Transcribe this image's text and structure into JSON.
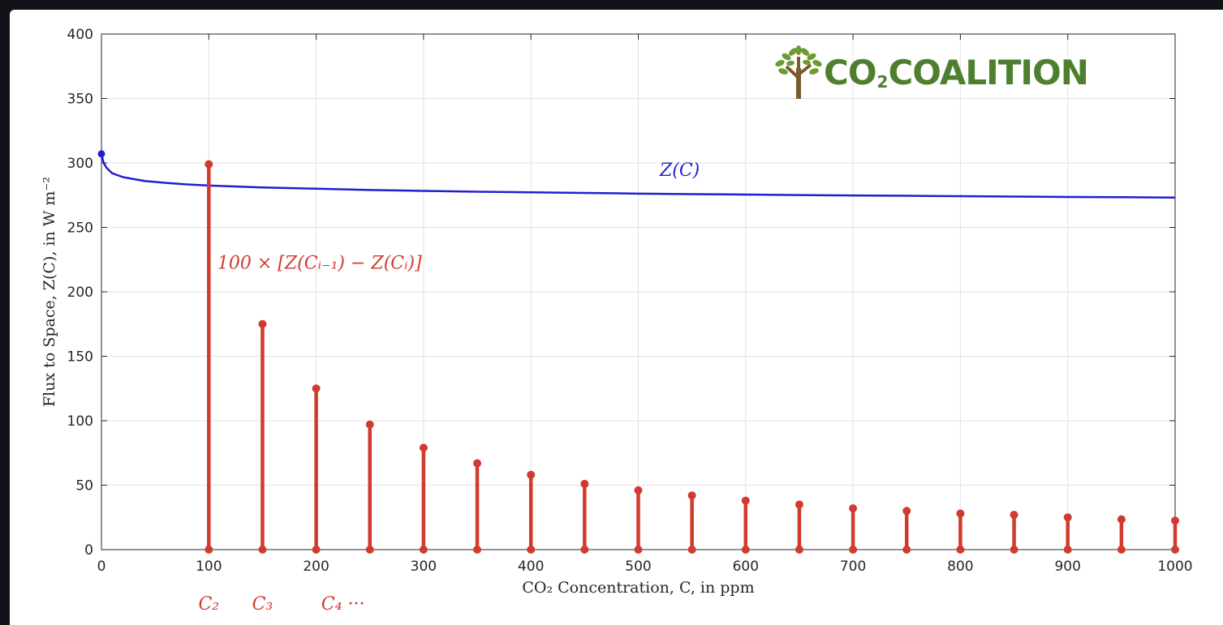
{
  "logo": {
    "part1": "CO",
    "subscript": "2",
    "part2": "COALITION",
    "colors": {
      "text": "#4f7f2e",
      "leaves": "#6c9b34",
      "trunk": "#7b5a2e"
    },
    "icon": "tree-icon"
  },
  "chart_data": {
    "type": "line",
    "xlabel": "CO₂ Concentration, C, in ppm",
    "ylabel": "Flux to Space, Z(C), in W m⁻²",
    "xlim": [
      0,
      1000
    ],
    "ylim": [
      0,
      400
    ],
    "xticks": [
      0,
      100,
      200,
      300,
      400,
      500,
      600,
      700,
      800,
      900,
      1000
    ],
    "yticks": [
      0,
      50,
      100,
      150,
      200,
      250,
      300,
      350,
      400
    ],
    "grid": true,
    "series": [
      {
        "name": "Z(C)",
        "type": "line",
        "color": "#1f1fd0",
        "x": [
          0,
          2,
          5,
          10,
          20,
          40,
          60,
          80,
          100,
          150,
          200,
          250,
          300,
          350,
          400,
          450,
          500,
          550,
          600,
          650,
          700,
          750,
          800,
          850,
          900,
          950,
          1000
        ],
        "y": [
          307,
          300,
          296,
          292,
          289,
          286,
          284.5,
          283.3,
          282.5,
          281,
          280,
          279,
          278.3,
          277.7,
          277.2,
          276.7,
          276.2,
          275.8,
          275.5,
          275.1,
          274.8,
          274.5,
          274.2,
          273.9,
          273.6,
          273.4,
          273.1
        ]
      },
      {
        "name": "100 × [Z(Cᵢ₋₁) − Z(Cᵢ)]",
        "type": "stem",
        "color": "#d13a2e",
        "x": [
          100,
          150,
          200,
          250,
          300,
          350,
          400,
          450,
          500,
          550,
          600,
          650,
          700,
          750,
          800,
          850,
          900,
          950,
          1000
        ],
        "y": [
          299,
          175,
          125,
          97,
          79,
          67,
          58,
          51,
          46,
          42,
          38,
          35,
          32,
          30,
          28,
          27,
          25,
          23.5,
          22.5
        ]
      }
    ],
    "annotations": [
      {
        "text": "Z(C)",
        "x": 520,
        "y": 290,
        "color": "#1f1fd0"
      },
      {
        "text": "100 × [Z(Cᵢ₋₁) − Z(Cᵢ)]",
        "x": 108,
        "y": 218,
        "color": "#d13a2e"
      }
    ],
    "below_axis_labels": [
      {
        "text": "C₂",
        "x": 100
      },
      {
        "text": "C₃",
        "x": 150
      },
      {
        "text": "C₄ ···",
        "x": 225
      }
    ]
  }
}
